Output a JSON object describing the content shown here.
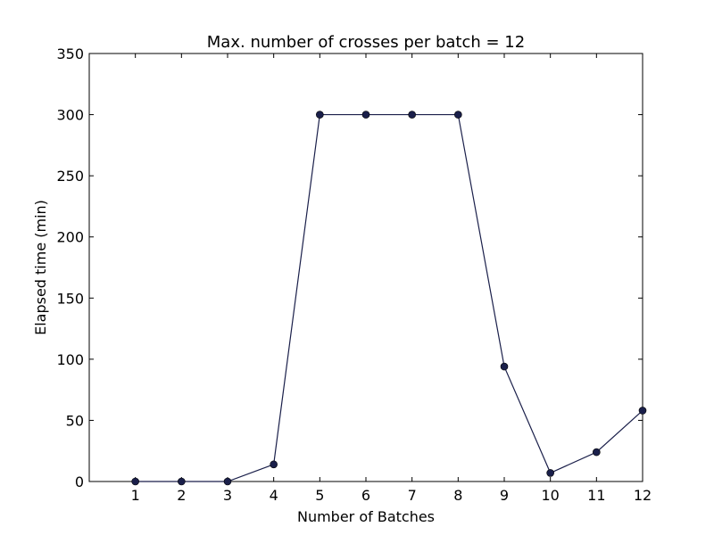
{
  "chart_data": {
    "type": "line",
    "title": "Max. number of crosses per batch = 12",
    "xlabel": "Number of Batches",
    "ylabel": "Elapsed time (min)",
    "xlim": [
      0,
      12
    ],
    "ylim": [
      0,
      350
    ],
    "xticks": [
      1,
      2,
      3,
      4,
      5,
      6,
      7,
      8,
      9,
      10,
      11,
      12
    ],
    "yticks": [
      0,
      50,
      100,
      150,
      200,
      250,
      300,
      350
    ],
    "grid": false,
    "legend": "none",
    "series": [
      {
        "color": "#1a1f4a",
        "marker": "circle",
        "x": [
          1,
          2,
          3,
          4,
          5,
          6,
          7,
          8,
          9,
          10,
          11,
          12
        ],
        "y": [
          0,
          0,
          0,
          14,
          300,
          300,
          300,
          300,
          94,
          7,
          24,
          58
        ]
      }
    ]
  }
}
